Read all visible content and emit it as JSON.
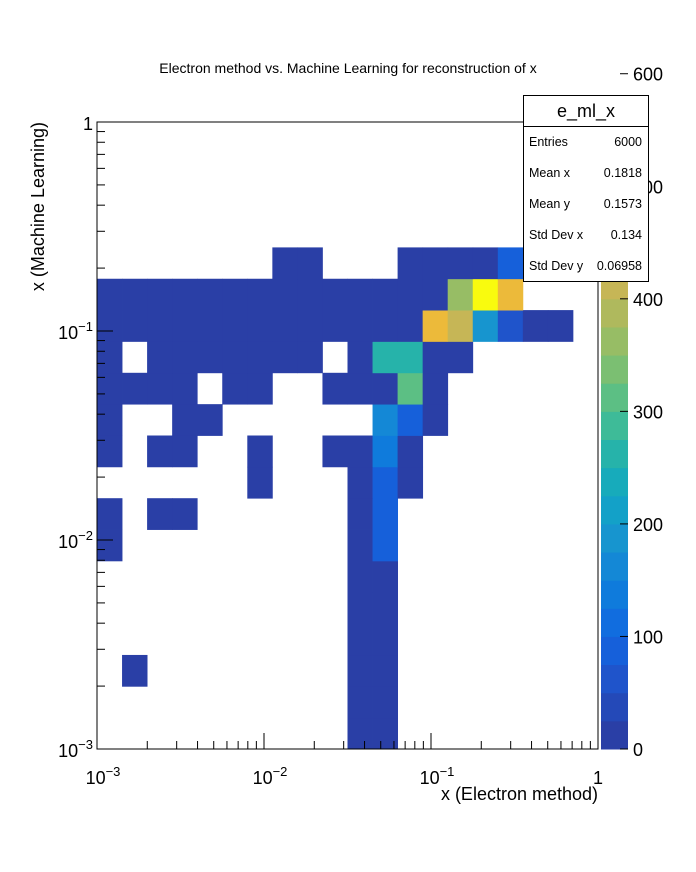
{
  "chart_data": {
    "type": "heatmap",
    "title": "Electron method vs. Machine Learning for reconstruction of x",
    "xlabel": "x (Electron method)",
    "ylabel": "x (Machine Learning)",
    "x_scale": "log",
    "y_scale": "log",
    "xlim": [
      0.001,
      1
    ],
    "ylim": [
      0.001,
      1
    ],
    "grid": false,
    "x_tick_labels": [
      "10^-3",
      "10^-2",
      "10^-1",
      "1"
    ],
    "y_tick_labels": [
      "10^-3",
      "10^-2",
      "10^-1",
      "1"
    ],
    "bins": 20,
    "colorbar": {
      "min": 0,
      "max": 550,
      "labels": [
        "0",
        "100",
        "200",
        "300",
        "400",
        "500",
        "600"
      ]
    },
    "cells": [
      [
        0,
        1,
        0,
        0,
        0,
        0,
        0,
        0,
        0,
        0,
        0,
        0,
        0,
        0,
        0,
        0,
        0,
        0,
        0,
        0
      ],
      [
        0,
        0,
        0,
        0,
        0,
        0,
        0,
        0,
        0,
        0,
        0,
        0,
        0,
        0,
        0,
        0,
        0,
        0,
        0,
        0
      ],
      [
        0,
        0,
        0,
        0,
        0,
        0,
        0,
        0,
        0,
        0,
        0,
        0,
        0,
        0,
        0,
        0,
        0,
        0,
        0,
        0
      ],
      [
        0,
        0,
        0,
        0,
        0,
        0,
        0,
        0,
        0,
        0,
        0,
        0,
        0,
        0,
        0,
        0,
        0,
        0,
        0,
        0
      ],
      [
        0,
        0,
        0,
        0,
        0,
        0,
        0,
        0,
        0,
        0,
        0,
        0,
        0,
        0,
        0,
        0,
        0,
        0,
        0,
        0
      ],
      [
        0,
        0,
        0,
        0,
        0,
        0,
        0,
        0,
        0,
        0,
        0,
        0,
        0,
        0,
        0,
        0,
        0,
        0,
        0,
        0
      ],
      [
        0,
        0,
        0,
        0,
        0,
        0,
        0,
        0,
        0,
        0,
        0,
        0,
        0,
        0,
        0,
        0,
        0,
        0,
        0,
        0
      ],
      [
        0,
        0,
        0,
        0,
        0,
        0,
        0,
        0,
        0,
        0,
        0,
        0,
        0,
        0,
        0,
        0,
        0,
        0,
        0,
        0
      ],
      [
        0,
        0,
        0,
        0,
        0,
        0,
        0,
        0,
        0,
        0,
        0,
        0,
        0,
        0,
        0,
        0,
        0,
        0,
        0,
        0
      ],
      [
        0,
        0,
        0,
        0,
        0,
        0,
        0,
        0,
        0,
        0,
        0,
        0,
        0,
        0,
        0,
        0,
        0,
        0,
        0,
        0
      ],
      [
        0,
        0,
        0,
        0,
        0,
        0,
        0,
        0,
        0,
        0,
        0,
        0,
        0,
        0,
        0,
        0,
        0,
        0,
        0,
        0
      ],
      [
        0,
        0,
        0,
        0,
        0,
        0,
        0,
        0,
        0,
        0,
        0,
        0,
        0,
        0,
        0,
        0,
        0,
        0,
        0,
        0
      ],
      [
        0,
        0,
        0,
        0,
        0,
        0,
        0,
        0,
        0,
        0,
        0,
        0,
        0,
        0,
        0,
        0,
        0,
        0,
        0,
        0
      ],
      [
        0,
        0,
        0,
        0,
        0,
        0,
        0,
        0,
        0,
        0,
        0,
        0,
        0,
        0,
        0,
        0,
        0,
        0,
        0,
        0
      ],
      [
        1,
        0,
        0,
        0,
        0,
        0,
        0,
        0,
        0,
        0,
        0,
        0,
        0,
        0,
        0,
        0,
        0,
        0,
        0,
        0
      ],
      [
        0,
        0,
        0,
        0,
        0,
        0,
        0,
        0,
        0,
        0,
        0,
        0,
        0,
        0,
        0,
        0,
        0,
        0,
        0,
        0
      ],
      [
        0,
        0,
        0,
        0,
        0,
        0,
        0,
        0,
        0,
        0,
        0,
        0,
        0,
        0,
        0,
        0,
        0,
        0,
        0,
        0
      ],
      [
        0,
        0,
        0,
        0,
        0,
        0,
        0,
        0,
        0,
        0,
        0,
        0,
        0,
        0,
        0,
        0,
        0,
        0,
        0,
        0
      ],
      [
        0,
        0,
        0,
        0,
        0,
        0,
        0,
        0,
        0,
        0,
        0,
        0,
        0,
        0,
        0,
        0,
        0,
        0,
        0,
        0
      ],
      [
        0,
        0,
        0,
        0,
        0,
        0,
        0,
        0,
        0,
        0,
        0,
        0,
        0,
        0,
        0,
        0,
        0,
        0,
        0,
        0
      ]
    ],
    "x_bins_count_note": "",
    "x_edges": [
      0.001,
      0.001413,
      0.001995,
      0.002818,
      0.003981,
      0.005623,
      0.007943,
      0.01122,
      0.01585,
      0.02239,
      0.03162,
      0.04467,
      0.0631,
      0.08913,
      0.1259,
      0.1778,
      0.2512,
      0.3548,
      0.5012,
      0.7079,
      1
    ],
    "filled_bins": [
      {
        "ix": 10,
        "iy": 0,
        "v": 10
      },
      {
        "ix": 11,
        "iy": 0,
        "v": 10
      },
      {
        "ix": 10,
        "iy": 1,
        "v": 10
      },
      {
        "ix": 11,
        "iy": 1,
        "v": 10
      },
      {
        "ix": 1,
        "iy": 2,
        "v": 10
      },
      {
        "ix": 10,
        "iy": 2,
        "v": 10
      },
      {
        "ix": 11,
        "iy": 2,
        "v": 10
      },
      {
        "ix": 10,
        "iy": 3,
        "v": 10
      },
      {
        "ix": 11,
        "iy": 3,
        "v": 10
      },
      {
        "ix": 10,
        "iy": 4,
        "v": 10
      },
      {
        "ix": 11,
        "iy": 4,
        "v": 10
      },
      {
        "ix": 10,
        "iy": 5,
        "v": 10
      },
      {
        "ix": 11,
        "iy": 5,
        "v": 10
      },
      {
        "ix": 0,
        "iy": 6,
        "v": 10
      },
      {
        "ix": 10,
        "iy": 6,
        "v": 10
      },
      {
        "ix": 11,
        "iy": 6,
        "v": 100
      },
      {
        "ix": 0,
        "iy": 7,
        "v": 10
      },
      {
        "ix": 2,
        "iy": 7,
        "v": 10
      },
      {
        "ix": 3,
        "iy": 7,
        "v": 10
      },
      {
        "ix": 10,
        "iy": 7,
        "v": 10
      },
      {
        "ix": 11,
        "iy": 7,
        "v": 100
      },
      {
        "ix": 6,
        "iy": 8,
        "v": 10
      },
      {
        "ix": 10,
        "iy": 8,
        "v": 10
      },
      {
        "ix": 11,
        "iy": 8,
        "v": 100
      },
      {
        "ix": 12,
        "iy": 8,
        "v": 10
      },
      {
        "ix": 0,
        "iy": 9,
        "v": 10
      },
      {
        "ix": 2,
        "iy": 9,
        "v": 10
      },
      {
        "ix": 3,
        "iy": 9,
        "v": 10
      },
      {
        "ix": 6,
        "iy": 9,
        "v": 10
      },
      {
        "ix": 9,
        "iy": 9,
        "v": 10
      },
      {
        "ix": 10,
        "iy": 9,
        "v": 10
      },
      {
        "ix": 11,
        "iy": 9,
        "v": 150
      },
      {
        "ix": 12,
        "iy": 9,
        "v": 10
      },
      {
        "ix": 0,
        "iy": 10,
        "v": 10
      },
      {
        "ix": 3,
        "iy": 10,
        "v": 10
      },
      {
        "ix": 4,
        "iy": 10,
        "v": 10
      },
      {
        "ix": 11,
        "iy": 10,
        "v": 180
      },
      {
        "ix": 12,
        "iy": 10,
        "v": 100
      },
      {
        "ix": 13,
        "iy": 10,
        "v": 10
      },
      {
        "ix": 0,
        "iy": 11,
        "v": 10
      },
      {
        "ix": 1,
        "iy": 11,
        "v": 10
      },
      {
        "ix": 2,
        "iy": 11,
        "v": 10
      },
      {
        "ix": 3,
        "iy": 11,
        "v": 10
      },
      {
        "ix": 5,
        "iy": 11,
        "v": 10
      },
      {
        "ix": 6,
        "iy": 11,
        "v": 10
      },
      {
        "ix": 9,
        "iy": 11,
        "v": 10
      },
      {
        "ix": 10,
        "iy": 11,
        "v": 10
      },
      {
        "ix": 11,
        "iy": 11,
        "v": 10
      },
      {
        "ix": 12,
        "iy": 11,
        "v": 330
      },
      {
        "ix": 13,
        "iy": 11,
        "v": 10
      },
      {
        "ix": 0,
        "iy": 12,
        "v": 10
      },
      {
        "ix": 2,
        "iy": 12,
        "v": 10
      },
      {
        "ix": 3,
        "iy": 12,
        "v": 10
      },
      {
        "ix": 4,
        "iy": 12,
        "v": 10
      },
      {
        "ix": 5,
        "iy": 12,
        "v": 10
      },
      {
        "ix": 6,
        "iy": 12,
        "v": 10
      },
      {
        "ix": 7,
        "iy": 12,
        "v": 10
      },
      {
        "ix": 8,
        "iy": 12,
        "v": 10
      },
      {
        "ix": 10,
        "iy": 12,
        "v": 10
      },
      {
        "ix": 11,
        "iy": 12,
        "v": 280
      },
      {
        "ix": 12,
        "iy": 12,
        "v": 280
      },
      {
        "ix": 13,
        "iy": 12,
        "v": 10
      },
      {
        "ix": 14,
        "iy": 12,
        "v": 10
      },
      {
        "ix": 0,
        "iy": 13,
        "v": 10
      },
      {
        "ix": 1,
        "iy": 13,
        "v": 10
      },
      {
        "ix": 2,
        "iy": 13,
        "v": 10
      },
      {
        "ix": 3,
        "iy": 13,
        "v": 10
      },
      {
        "ix": 4,
        "iy": 13,
        "v": 10
      },
      {
        "ix": 5,
        "iy": 13,
        "v": 10
      },
      {
        "ix": 6,
        "iy": 13,
        "v": 10
      },
      {
        "ix": 7,
        "iy": 13,
        "v": 10
      },
      {
        "ix": 8,
        "iy": 13,
        "v": 10
      },
      {
        "ix": 9,
        "iy": 13,
        "v": 10
      },
      {
        "ix": 10,
        "iy": 13,
        "v": 10
      },
      {
        "ix": 11,
        "iy": 13,
        "v": 10
      },
      {
        "ix": 12,
        "iy": 13,
        "v": 10
      },
      {
        "ix": 13,
        "iy": 13,
        "v": 480
      },
      {
        "ix": 14,
        "iy": 13,
        "v": 440
      },
      {
        "ix": 15,
        "iy": 13,
        "v": 190
      },
      {
        "ix": 16,
        "iy": 13,
        "v": 60
      },
      {
        "ix": 17,
        "iy": 13,
        "v": 10
      },
      {
        "ix": 18,
        "iy": 13,
        "v": 10
      },
      {
        "ix": 0,
        "iy": 14,
        "v": 10
      },
      {
        "ix": 1,
        "iy": 14,
        "v": 10
      },
      {
        "ix": 2,
        "iy": 14,
        "v": 10
      },
      {
        "ix": 3,
        "iy": 14,
        "v": 10
      },
      {
        "ix": 4,
        "iy": 14,
        "v": 10
      },
      {
        "ix": 5,
        "iy": 14,
        "v": 10
      },
      {
        "ix": 6,
        "iy": 14,
        "v": 10
      },
      {
        "ix": 7,
        "iy": 14,
        "v": 10
      },
      {
        "ix": 8,
        "iy": 14,
        "v": 10
      },
      {
        "ix": 9,
        "iy": 14,
        "v": 10
      },
      {
        "ix": 10,
        "iy": 14,
        "v": 10
      },
      {
        "ix": 11,
        "iy": 14,
        "v": 10
      },
      {
        "ix": 12,
        "iy": 14,
        "v": 10
      },
      {
        "ix": 13,
        "iy": 14,
        "v": 10
      },
      {
        "ix": 14,
        "iy": 14,
        "v": 380
      },
      {
        "ix": 15,
        "iy": 14,
        "v": 550
      },
      {
        "ix": 16,
        "iy": 14,
        "v": 490
      },
      {
        "ix": 7,
        "iy": 15,
        "v": 10
      },
      {
        "ix": 8,
        "iy": 15,
        "v": 10
      },
      {
        "ix": 12,
        "iy": 15,
        "v": 10
      },
      {
        "ix": 13,
        "iy": 15,
        "v": 10
      },
      {
        "ix": 14,
        "iy": 15,
        "v": 10
      },
      {
        "ix": 15,
        "iy": 15,
        "v": 10
      },
      {
        "ix": 16,
        "iy": 15,
        "v": 100
      }
    ]
  },
  "stats": {
    "title": "e_ml_x",
    "rows": [
      {
        "key": "Entries",
        "value": "6000"
      },
      {
        "key": "Mean x",
        "value": "0.1818"
      },
      {
        "key": "Mean y",
        "value": "0.1573"
      },
      {
        "key": "Std Dev x",
        "value": "0.134"
      },
      {
        "key": "Std Dev y",
        "value": "0.06958"
      }
    ]
  },
  "colors": {
    "palette": [
      "#2a3fa6",
      "#2449b8",
      "#1f54cb",
      "#1660da",
      "#116ddf",
      "#0f7bdc",
      "#1488d6",
      "#1795cf",
      "#13a1c8",
      "#17abbb",
      "#26b3aa",
      "#3ebb98",
      "#5cbf84",
      "#7bbf72",
      "#97bd65",
      "#afb95d",
      "#c6b656",
      "#dbb449",
      "#ecba3a",
      "#f7cd2a",
      "#fbe91c",
      "#f9fb0e"
    ]
  }
}
